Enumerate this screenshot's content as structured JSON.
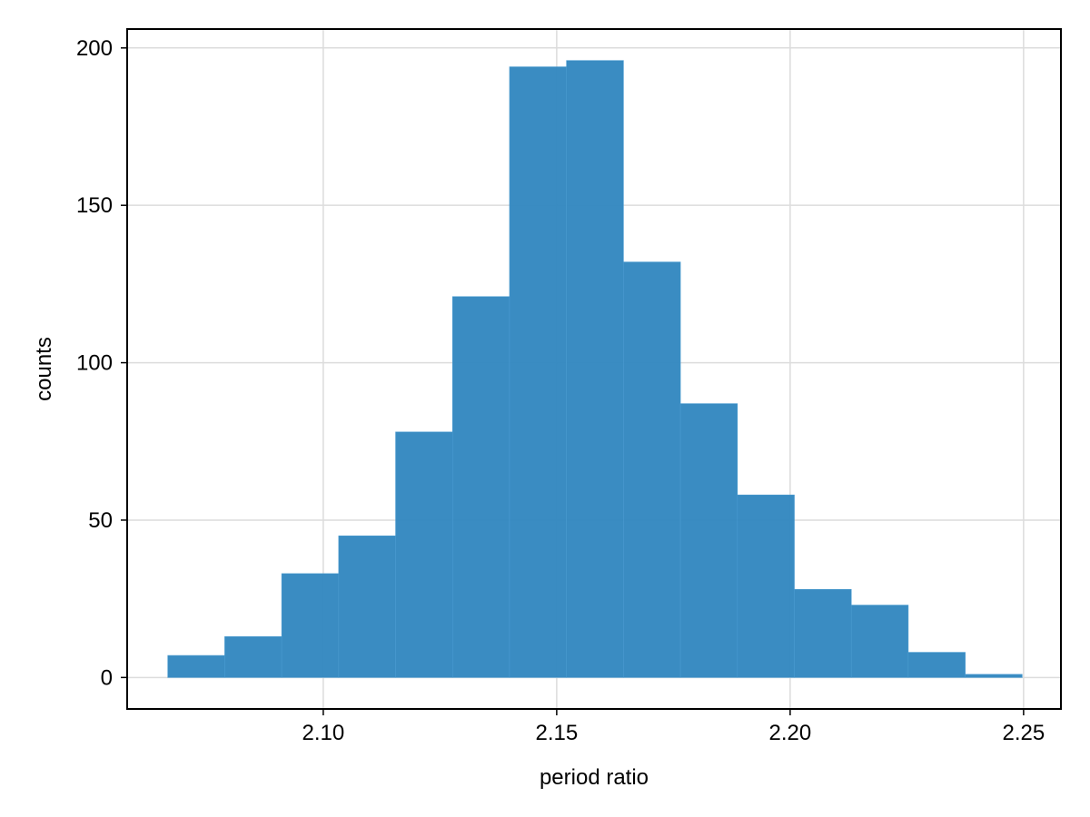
{
  "chart_data": {
    "type": "bar",
    "subtype": "histogram",
    "title": "",
    "xlabel": "period ratio",
    "ylabel": "counts",
    "bin_edges": [
      2.0667,
      2.0789,
      2.0911,
      2.1033,
      2.1155,
      2.1277,
      2.1399,
      2.1521,
      2.1643,
      2.1765,
      2.1887,
      2.2009,
      2.2131,
      2.2253,
      2.2375,
      2.2497
    ],
    "values": [
      7,
      13,
      33,
      45,
      78,
      121,
      194,
      196,
      132,
      87,
      58,
      28,
      23,
      8,
      1
    ],
    "xlim": [
      2.058,
      2.258
    ],
    "ylim": [
      -10,
      206
    ],
    "x_ticks": [
      2.1,
      2.15,
      2.2,
      2.25
    ],
    "x_tick_labels": [
      "2.10",
      "2.15",
      "2.20",
      "2.25"
    ],
    "y_ticks": [
      0,
      50,
      100,
      150,
      200
    ],
    "y_tick_labels": [
      "0",
      "50",
      "100",
      "150",
      "200"
    ],
    "grid": true,
    "legend": "none",
    "bar_color": "#2f86bf",
    "grid_color": "#dcdcdc"
  }
}
